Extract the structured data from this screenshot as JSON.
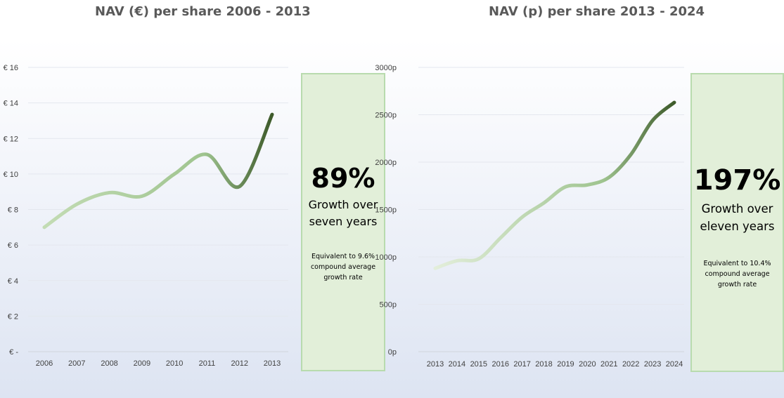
{
  "chart_data": [
    {
      "type": "line",
      "title": "NAV (€) per share 2006 - 2013",
      "x": [
        "2006",
        "2007",
        "2008",
        "2009",
        "2010",
        "2011",
        "2012",
        "2013"
      ],
      "series": [
        {
          "values": [
            7.0,
            8.3,
            8.95,
            8.75,
            10.0,
            11.1,
            9.3,
            13.35
          ]
        }
      ],
      "y_ticks": [
        "€ -",
        "€ 2",
        "€ 4",
        "€ 6",
        "€ 8",
        "€ 10",
        "€ 12",
        "€ 14",
        "€ 16"
      ],
      "ylim": [
        0,
        16
      ],
      "grid": true,
      "line_colors": [
        "#c3dcb4",
        "#3d5a2a"
      ]
    },
    {
      "type": "line",
      "title": "NAV (p) per share 2013 - 2024",
      "x": [
        "2013",
        "2014",
        "2015",
        "2016",
        "2017",
        "2018",
        "2019",
        "2020",
        "2021",
        "2022",
        "2023",
        "2024"
      ],
      "series": [
        {
          "values": [
            880,
            960,
            980,
            1200,
            1420,
            1570,
            1740,
            1760,
            1840,
            2080,
            2440,
            2630
          ]
        }
      ],
      "y_ticks": [
        "0p",
        "500p",
        "1000p",
        "1500p",
        "2000p",
        "2500p",
        "3000p"
      ],
      "ylim": [
        0,
        3000
      ],
      "grid": true,
      "line_colors": [
        "#e3eedb",
        "#3d5a2a"
      ]
    }
  ],
  "callouts": {
    "left": {
      "percent": "89%",
      "growth_line1": "Growth over",
      "growth_line2": "seven years",
      "equiv_line1": "Equivalent to 9.6%",
      "equiv_line2": "compound average",
      "equiv_line3": "growth rate",
      "fill": "#e2efd9",
      "border": "#b8dbae"
    },
    "right": {
      "percent": "197%",
      "growth_line1": "Growth over",
      "growth_line2": "eleven years",
      "equiv_line1": "Equivalent to 10.4%",
      "equiv_line2": "compound average",
      "equiv_line3": "growth rate",
      "fill": "#e2efd9",
      "border": "#b8dbae"
    }
  }
}
